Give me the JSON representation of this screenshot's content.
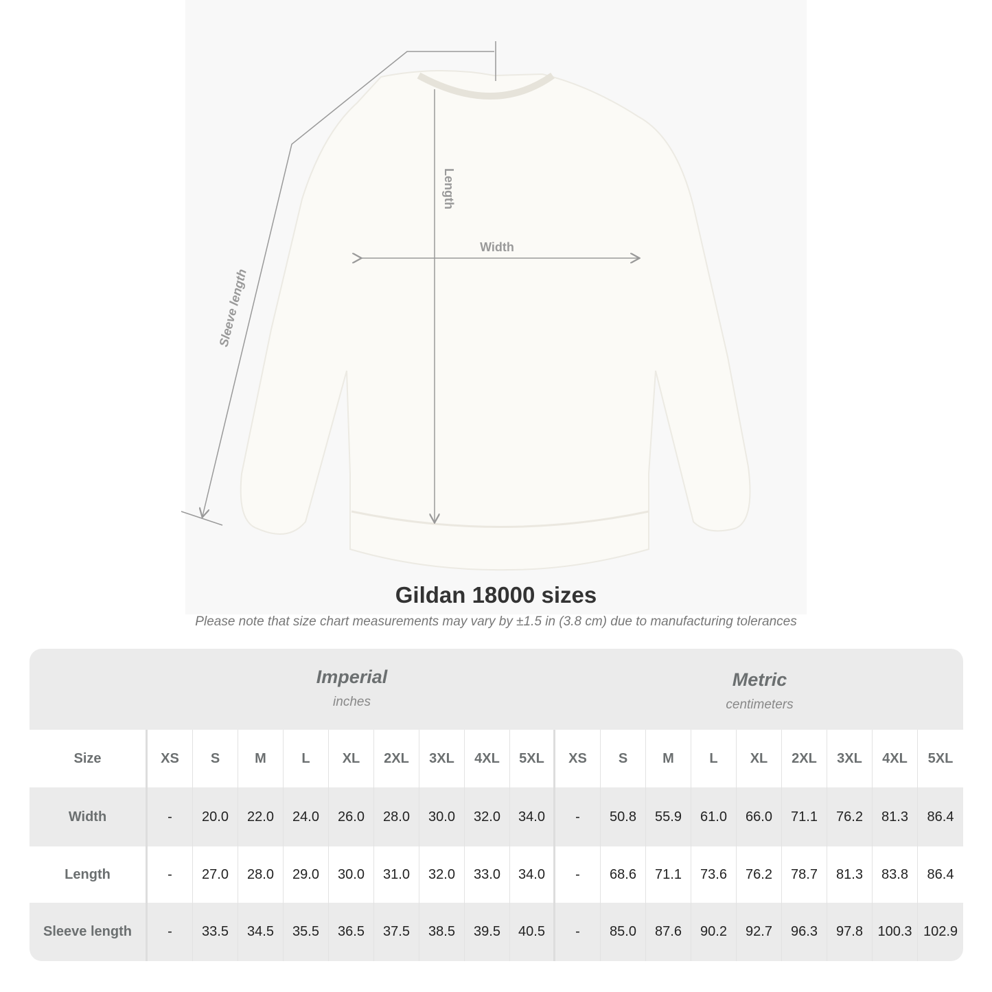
{
  "diagram": {
    "length_label": "Length",
    "width_label": "Width",
    "sleeve_label": "Sleeve length"
  },
  "title": "Gildan 18000 sizes",
  "note": "Please note that size chart measurements may vary by ±1.5 in (3.8 cm) due to manufacturing tolerances",
  "table": {
    "imperial": {
      "name": "Imperial",
      "unit": "inches"
    },
    "metric": {
      "name": "Metric",
      "unit": "centimeters"
    },
    "size_label": "Size",
    "sizes": [
      "XS",
      "S",
      "M",
      "L",
      "XL",
      "2XL",
      "3XL",
      "4XL",
      "5XL"
    ],
    "rows": [
      {
        "label": "Width",
        "imperial": [
          "-",
          "20.0",
          "22.0",
          "24.0",
          "26.0",
          "28.0",
          "30.0",
          "32.0",
          "34.0"
        ],
        "metric": [
          "-",
          "50.8",
          "55.9",
          "61.0",
          "66.0",
          "71.1",
          "76.2",
          "81.3",
          "86.4"
        ]
      },
      {
        "label": "Length",
        "imperial": [
          "-",
          "27.0",
          "28.0",
          "29.0",
          "30.0",
          "31.0",
          "32.0",
          "33.0",
          "34.0"
        ],
        "metric": [
          "-",
          "68.6",
          "71.1",
          "73.6",
          "76.2",
          "78.7",
          "81.3",
          "83.8",
          "86.4"
        ]
      },
      {
        "label": "Sleeve length",
        "imperial": [
          "-",
          "33.5",
          "34.5",
          "35.5",
          "36.5",
          "37.5",
          "38.5",
          "39.5",
          "40.5"
        ],
        "metric": [
          "-",
          "85.0",
          "87.6",
          "90.2",
          "92.7",
          "96.3",
          "97.8",
          "100.3",
          "102.9"
        ]
      }
    ]
  },
  "colors": {
    "table_bg": "#ebebeb",
    "header_text": "#6b6f70",
    "garment": "#fbfaf6"
  }
}
